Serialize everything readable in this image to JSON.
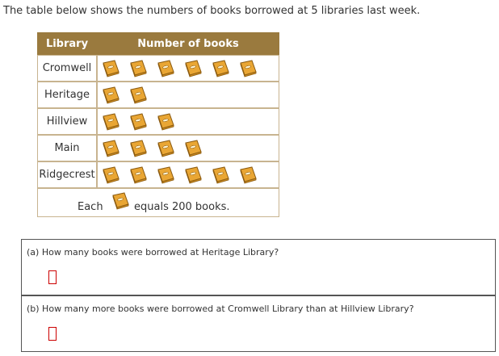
{
  "intro": "The table below shows the numbers of books borrowed at 5 libraries last week.",
  "table": {
    "headers": [
      "Library",
      "Number of books"
    ],
    "rows": [
      {
        "library": "Cromwell",
        "count": 6
      },
      {
        "library": "Heritage",
        "count": 2
      },
      {
        "library": "Hillview",
        "count": 3
      },
      {
        "library": "Main",
        "count": 4
      },
      {
        "library": "Ridgecrest",
        "count": 6
      }
    ],
    "key": {
      "before": "Each",
      "after": "equals 200 books."
    }
  },
  "questions": [
    "(a) How many books were borrowed at Heritage Library?",
    "(b) How many more books were borrowed at Cromwell Library than at Hillview Library?"
  ]
}
